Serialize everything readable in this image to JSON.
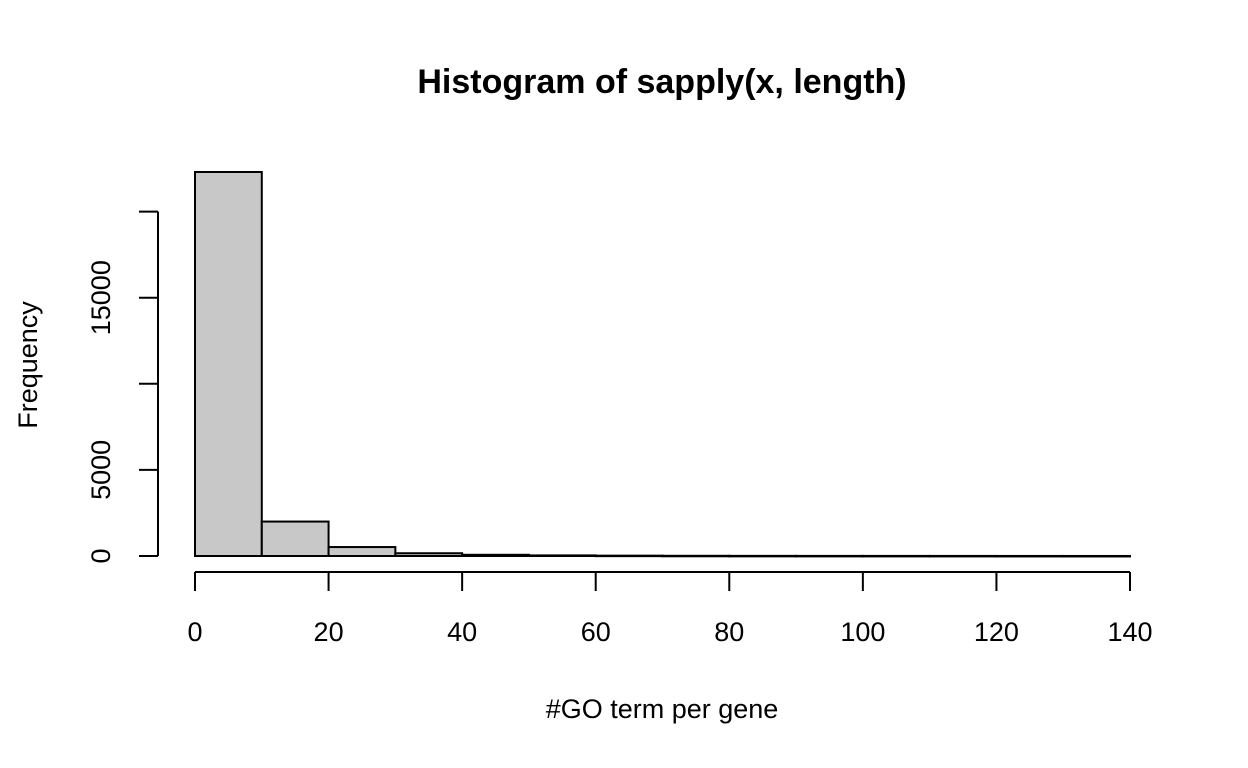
{
  "chart_data": {
    "type": "bar",
    "title": "Histogram of sapply(x, length)",
    "xlabel": "#GO term per gene",
    "ylabel": "Frequency",
    "bin_edges": [
      0,
      10,
      20,
      30,
      40,
      50,
      60,
      70,
      80,
      90,
      100,
      110,
      120,
      130,
      140
    ],
    "values": [
      22300,
      2000,
      520,
      160,
      70,
      35,
      20,
      12,
      8,
      6,
      5,
      4,
      3,
      2
    ],
    "xlim": [
      0,
      140
    ],
    "ylim": [
      0,
      22300
    ],
    "x_ticks": [
      "0",
      "20",
      "40",
      "60",
      "80",
      "100",
      "120",
      "140"
    ],
    "y_ticks": [
      "0",
      "5000",
      "",
      "15000",
      ""
    ],
    "y_tick_values": [
      0,
      5000,
      10000,
      15000,
      20000
    ],
    "bar_fill": "#c8c8c8",
    "grid": false
  }
}
